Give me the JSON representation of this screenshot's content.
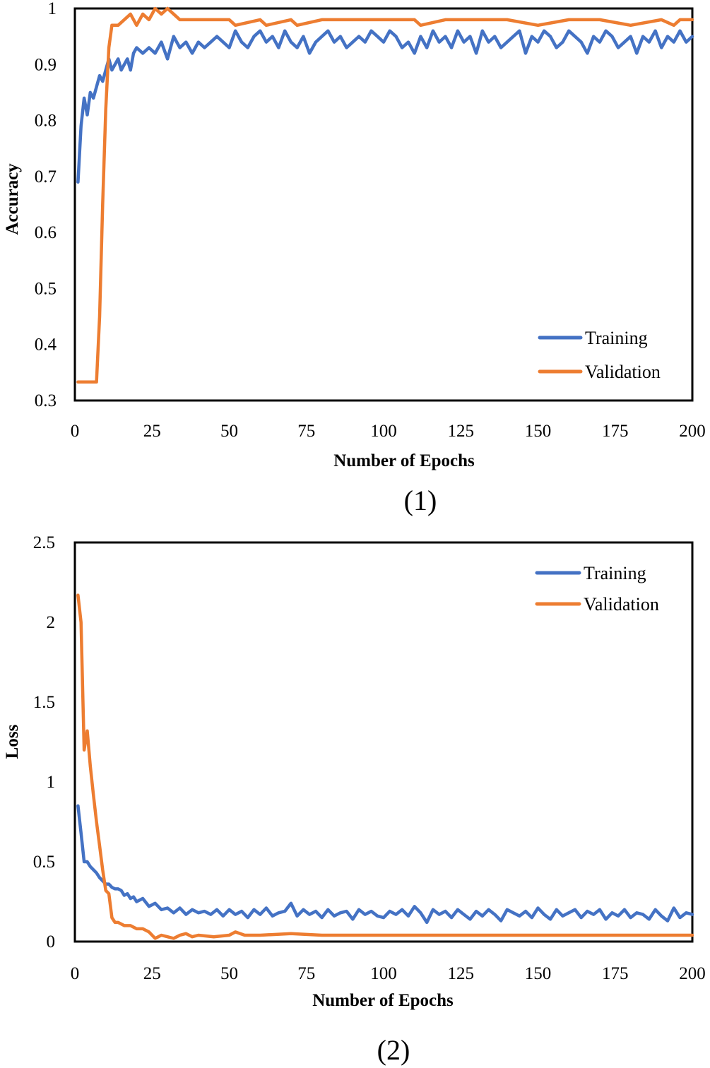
{
  "chart_data": [
    {
      "type": "line",
      "id": "accuracy",
      "caption": "(1)",
      "xlabel": "Number of Epochs",
      "ylabel": "Accuracy",
      "xlim": [
        0,
        200
      ],
      "ylim": [
        0.3,
        1
      ],
      "xticks": [
        0,
        25,
        50,
        75,
        100,
        125,
        150,
        175,
        200
      ],
      "yticks": [
        0.3,
        0.4,
        0.5,
        0.6,
        0.7,
        0.8,
        0.9,
        1
      ],
      "ytick_labels": [
        "0.3",
        "0.4",
        "0.5",
        "0.6",
        "0.7",
        "0.8",
        "0.9",
        "1"
      ],
      "legend_position": "bottom-right",
      "series": [
        {
          "name": "Training",
          "color": "#4472C4",
          "x": [
            1,
            2,
            3,
            4,
            5,
            6,
            7,
            8,
            9,
            10,
            11,
            12,
            13,
            14,
            15,
            16,
            17,
            18,
            19,
            20,
            22,
            24,
            26,
            28,
            30,
            32,
            34,
            36,
            38,
            40,
            42,
            44,
            46,
            48,
            50,
            52,
            54,
            56,
            58,
            60,
            62,
            64,
            66,
            68,
            70,
            72,
            74,
            76,
            78,
            80,
            82,
            84,
            86,
            88,
            90,
            92,
            94,
            96,
            98,
            100,
            102,
            104,
            106,
            108,
            110,
            112,
            114,
            116,
            118,
            120,
            122,
            124,
            126,
            128,
            130,
            132,
            134,
            136,
            138,
            140,
            142,
            144,
            146,
            148,
            150,
            152,
            154,
            156,
            158,
            160,
            162,
            164,
            166,
            168,
            170,
            172,
            174,
            176,
            178,
            180,
            182,
            184,
            186,
            188,
            190,
            192,
            194,
            196,
            198,
            200
          ],
          "values": [
            0.69,
            0.79,
            0.84,
            0.81,
            0.85,
            0.84,
            0.86,
            0.88,
            0.87,
            0.89,
            0.91,
            0.89,
            0.9,
            0.91,
            0.89,
            0.9,
            0.91,
            0.89,
            0.92,
            0.93,
            0.92,
            0.93,
            0.92,
            0.94,
            0.91,
            0.95,
            0.93,
            0.94,
            0.92,
            0.94,
            0.93,
            0.94,
            0.95,
            0.94,
            0.93,
            0.96,
            0.94,
            0.93,
            0.95,
            0.96,
            0.94,
            0.95,
            0.93,
            0.96,
            0.94,
            0.93,
            0.95,
            0.92,
            0.94,
            0.95,
            0.96,
            0.94,
            0.95,
            0.93,
            0.94,
            0.95,
            0.94,
            0.96,
            0.95,
            0.94,
            0.96,
            0.95,
            0.93,
            0.94,
            0.92,
            0.95,
            0.93,
            0.96,
            0.94,
            0.95,
            0.93,
            0.96,
            0.94,
            0.95,
            0.92,
            0.96,
            0.94,
            0.95,
            0.93,
            0.94,
            0.95,
            0.96,
            0.92,
            0.95,
            0.94,
            0.96,
            0.95,
            0.93,
            0.94,
            0.96,
            0.95,
            0.94,
            0.92,
            0.95,
            0.94,
            0.96,
            0.95,
            0.93,
            0.94,
            0.95,
            0.92,
            0.95,
            0.94,
            0.96,
            0.93,
            0.95,
            0.94,
            0.96,
            0.94,
            0.95
          ]
        },
        {
          "name": "Validation",
          "color": "#ED7D31",
          "x": [
            1,
            3,
            5,
            7,
            8,
            9,
            10,
            11,
            12,
            13,
            14,
            16,
            18,
            20,
            22,
            24,
            26,
            28,
            30,
            32,
            34,
            40,
            50,
            52,
            60,
            62,
            70,
            72,
            80,
            90,
            100,
            110,
            112,
            120,
            140,
            150,
            160,
            170,
            180,
            190,
            194,
            196,
            200
          ],
          "values": [
            0.333,
            0.333,
            0.333,
            0.333,
            0.45,
            0.65,
            0.82,
            0.93,
            0.97,
            0.97,
            0.97,
            0.98,
            0.99,
            0.97,
            0.99,
            0.98,
            1.0,
            0.99,
            1.0,
            0.99,
            0.98,
            0.98,
            0.98,
            0.97,
            0.98,
            0.97,
            0.98,
            0.97,
            0.98,
            0.98,
            0.98,
            0.98,
            0.97,
            0.98,
            0.98,
            0.97,
            0.98,
            0.98,
            0.97,
            0.98,
            0.97,
            0.98,
            0.98
          ]
        }
      ]
    },
    {
      "type": "line",
      "id": "loss",
      "caption": "(2)",
      "xlabel": "Number of Epochs",
      "ylabel": "Loss",
      "xlim": [
        0,
        200
      ],
      "ylim": [
        0,
        2.5
      ],
      "xticks": [
        0,
        25,
        50,
        75,
        100,
        125,
        150,
        175,
        200
      ],
      "yticks": [
        0,
        0.5,
        1,
        1.5,
        2,
        2.5
      ],
      "ytick_labels": [
        "0",
        "0.5",
        "1",
        "1.5",
        "2",
        "2.5"
      ],
      "legend_position": "top-right",
      "series": [
        {
          "name": "Training",
          "color": "#4472C4",
          "x": [
            1,
            2,
            3,
            4,
            5,
            6,
            7,
            8,
            9,
            10,
            11,
            12,
            13,
            14,
            15,
            16,
            17,
            18,
            19,
            20,
            22,
            24,
            26,
            28,
            30,
            32,
            34,
            36,
            38,
            40,
            42,
            44,
            46,
            48,
            50,
            52,
            54,
            56,
            58,
            60,
            62,
            64,
            66,
            68,
            70,
            72,
            74,
            76,
            78,
            80,
            82,
            84,
            86,
            88,
            90,
            92,
            94,
            96,
            98,
            100,
            102,
            104,
            106,
            108,
            110,
            112,
            114,
            116,
            118,
            120,
            122,
            124,
            126,
            128,
            130,
            132,
            134,
            136,
            138,
            140,
            142,
            144,
            146,
            148,
            150,
            152,
            154,
            156,
            158,
            160,
            162,
            164,
            166,
            168,
            170,
            172,
            174,
            176,
            178,
            180,
            182,
            184,
            186,
            188,
            190,
            192,
            194,
            196,
            198,
            200
          ],
          "values": [
            0.85,
            0.68,
            0.5,
            0.5,
            0.47,
            0.45,
            0.43,
            0.4,
            0.38,
            0.36,
            0.36,
            0.34,
            0.33,
            0.33,
            0.32,
            0.29,
            0.3,
            0.27,
            0.28,
            0.25,
            0.27,
            0.22,
            0.24,
            0.2,
            0.21,
            0.18,
            0.21,
            0.17,
            0.2,
            0.18,
            0.19,
            0.17,
            0.2,
            0.16,
            0.2,
            0.17,
            0.19,
            0.15,
            0.2,
            0.17,
            0.21,
            0.16,
            0.18,
            0.19,
            0.24,
            0.16,
            0.2,
            0.17,
            0.19,
            0.15,
            0.2,
            0.16,
            0.18,
            0.19,
            0.14,
            0.2,
            0.17,
            0.19,
            0.16,
            0.15,
            0.19,
            0.17,
            0.2,
            0.16,
            0.22,
            0.18,
            0.12,
            0.2,
            0.17,
            0.19,
            0.15,
            0.2,
            0.17,
            0.14,
            0.19,
            0.16,
            0.2,
            0.17,
            0.13,
            0.2,
            0.18,
            0.16,
            0.19,
            0.15,
            0.21,
            0.17,
            0.14,
            0.2,
            0.16,
            0.18,
            0.2,
            0.15,
            0.19,
            0.17,
            0.2,
            0.14,
            0.18,
            0.16,
            0.2,
            0.15,
            0.18,
            0.17,
            0.14,
            0.2,
            0.16,
            0.13,
            0.21,
            0.15,
            0.18,
            0.17
          ]
        },
        {
          "name": "Validation",
          "color": "#ED7D31",
          "x": [
            1,
            2,
            3,
            4,
            5,
            6,
            7,
            8,
            9,
            10,
            11,
            12,
            13,
            14,
            16,
            18,
            20,
            22,
            24,
            26,
            28,
            30,
            32,
            34,
            36,
            38,
            40,
            45,
            50,
            52,
            55,
            60,
            70,
            80,
            100,
            120,
            140,
            160,
            180,
            200
          ],
          "values": [
            2.17,
            2.0,
            1.2,
            1.32,
            1.1,
            0.92,
            0.75,
            0.6,
            0.45,
            0.32,
            0.3,
            0.15,
            0.12,
            0.12,
            0.1,
            0.1,
            0.08,
            0.08,
            0.06,
            0.02,
            0.04,
            0.03,
            0.02,
            0.04,
            0.05,
            0.03,
            0.04,
            0.03,
            0.04,
            0.06,
            0.04,
            0.04,
            0.05,
            0.04,
            0.04,
            0.04,
            0.04,
            0.04,
            0.04,
            0.04
          ]
        }
      ]
    }
  ]
}
